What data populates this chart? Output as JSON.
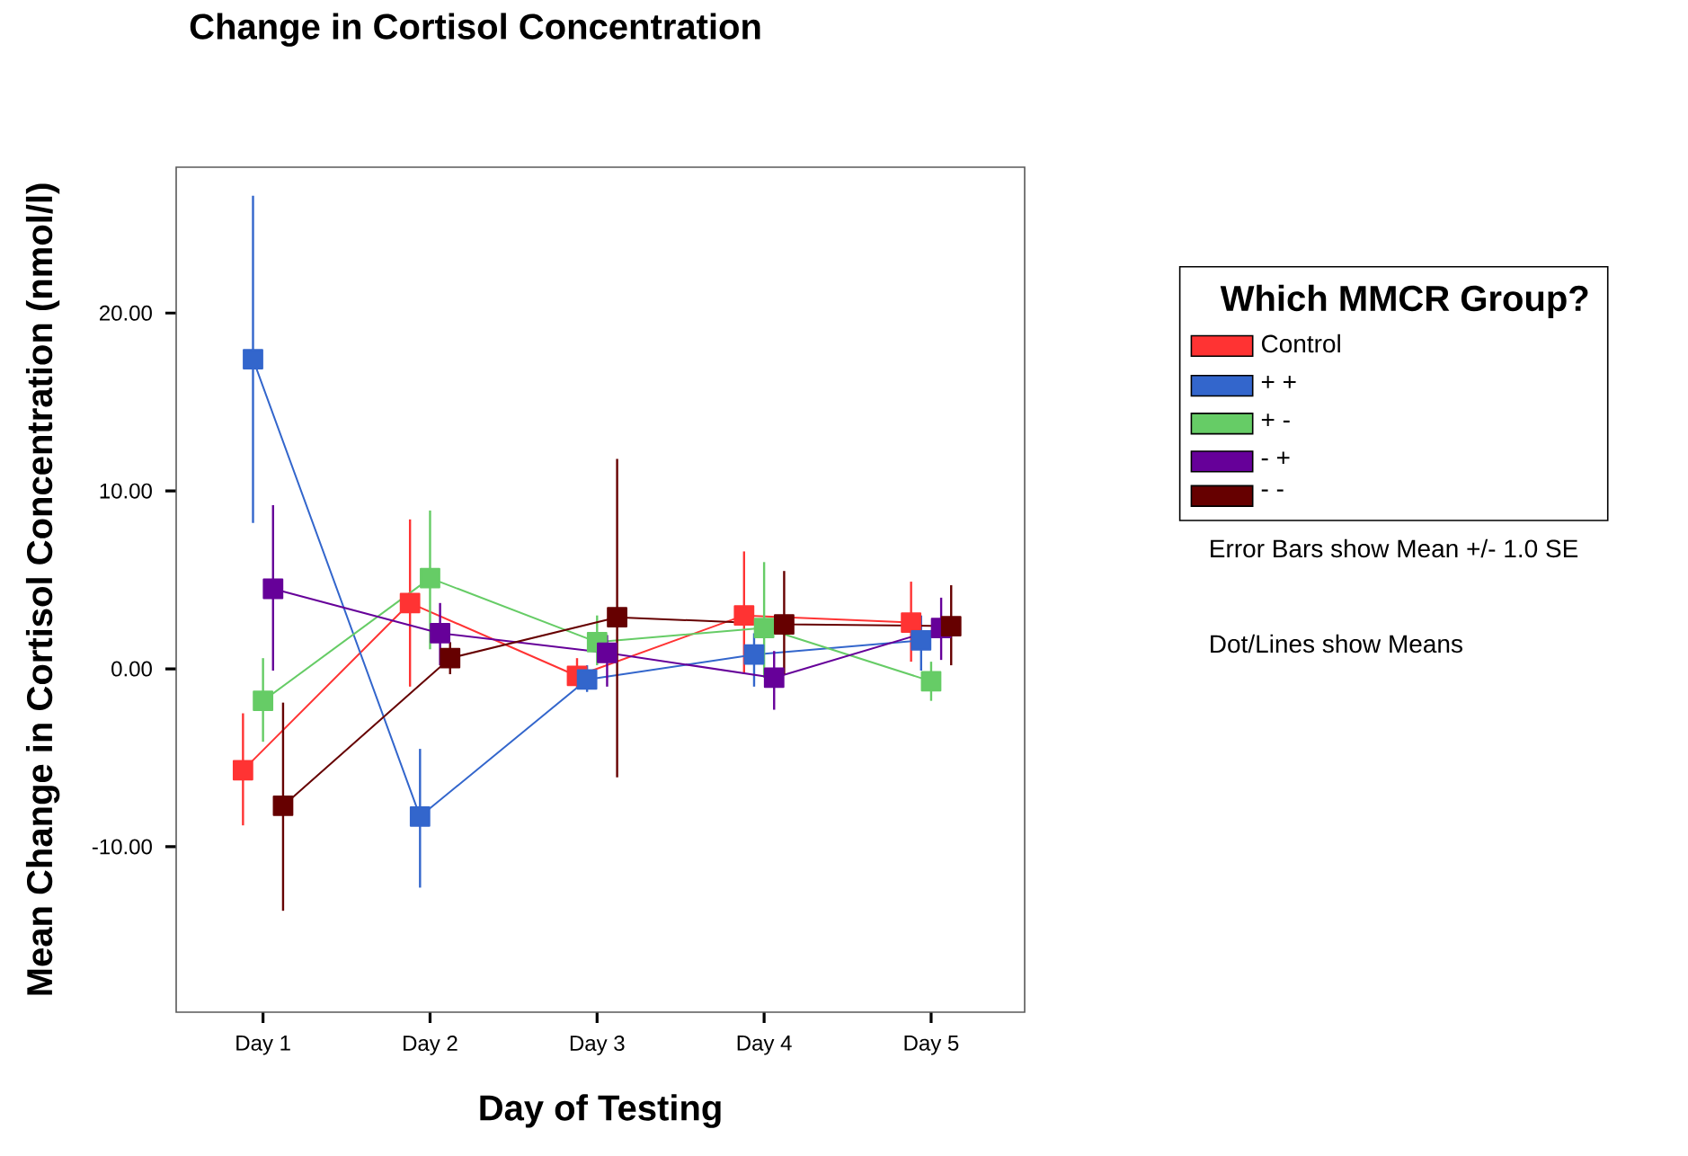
{
  "chart_data": {
    "type": "line",
    "title": "Change in Cortisol Concentration",
    "xlabel": "Day of Testing",
    "ylabel": "Mean Change in Cortisol Concentration (nmol/l)",
    "legend_title": "Which MMCR Group?",
    "annotations": [
      "Error Bars show Mean +/- 1.0 SE",
      "Dot/Lines show Means"
    ],
    "categories": [
      "Day 1",
      "Day 2",
      "Day 3",
      "Day 4",
      "Day 5"
    ],
    "ylim": [
      -19.3,
      28.2
    ],
    "yticks": [
      {
        "value": -10,
        "label": "-10.00"
      },
      {
        "value": 0,
        "label": "0.00"
      },
      {
        "value": 10,
        "label": "10.00"
      },
      {
        "value": 20,
        "label": "20.00"
      }
    ],
    "grid": false,
    "legend": "right",
    "marker": "square",
    "line_style": "solid",
    "series": [
      {
        "name": "Control",
        "color": "#ff3333",
        "values": [
          -5.7,
          3.7,
          -0.4,
          3.0,
          2.6
        ],
        "errors": [
          [
            -8.8,
            -2.5
          ],
          [
            -1.0,
            8.4
          ],
          [
            -1.1,
            0.6
          ],
          [
            -0.3,
            6.6
          ],
          [
            0.4,
            4.9
          ]
        ]
      },
      {
        "name": "+ +",
        "color": "#3366cc",
        "values": [
          17.4,
          -8.3,
          -0.6,
          0.8,
          1.6
        ],
        "errors": [
          [
            8.2,
            26.6
          ],
          [
            -12.3,
            -4.5
          ],
          [
            -1.3,
            0.2
          ],
          [
            -1.0,
            2.0
          ],
          [
            -0.1,
            3.0
          ]
        ]
      },
      {
        "name": "+ -",
        "color": "#66cc66",
        "values": [
          -1.8,
          5.1,
          1.5,
          2.3,
          -0.7
        ],
        "errors": [
          [
            -4.1,
            0.6
          ],
          [
            1.1,
            8.9
          ],
          [
            0.2,
            3.0
          ],
          [
            -0.5,
            6.0
          ],
          [
            -1.8,
            0.4
          ]
        ]
      },
      {
        "name": "- +",
        "color": "#660099",
        "values": [
          4.5,
          2.0,
          0.9,
          -0.5,
          2.3
        ],
        "errors": [
          [
            -0.1,
            9.2
          ],
          [
            0.2,
            3.7
          ],
          [
            -1.0,
            1.9
          ],
          [
            -2.3,
            1.0
          ],
          [
            0.5,
            4.0
          ]
        ]
      },
      {
        "name": "- -",
        "color": "#660000",
        "values": [
          -7.7,
          0.6,
          2.9,
          2.5,
          2.4
        ],
        "errors": [
          [
            -13.6,
            -1.9
          ],
          [
            -0.3,
            1.5
          ],
          [
            -6.1,
            11.8
          ],
          [
            -0.3,
            5.5
          ],
          [
            0.2,
            4.7
          ]
        ]
      }
    ]
  }
}
